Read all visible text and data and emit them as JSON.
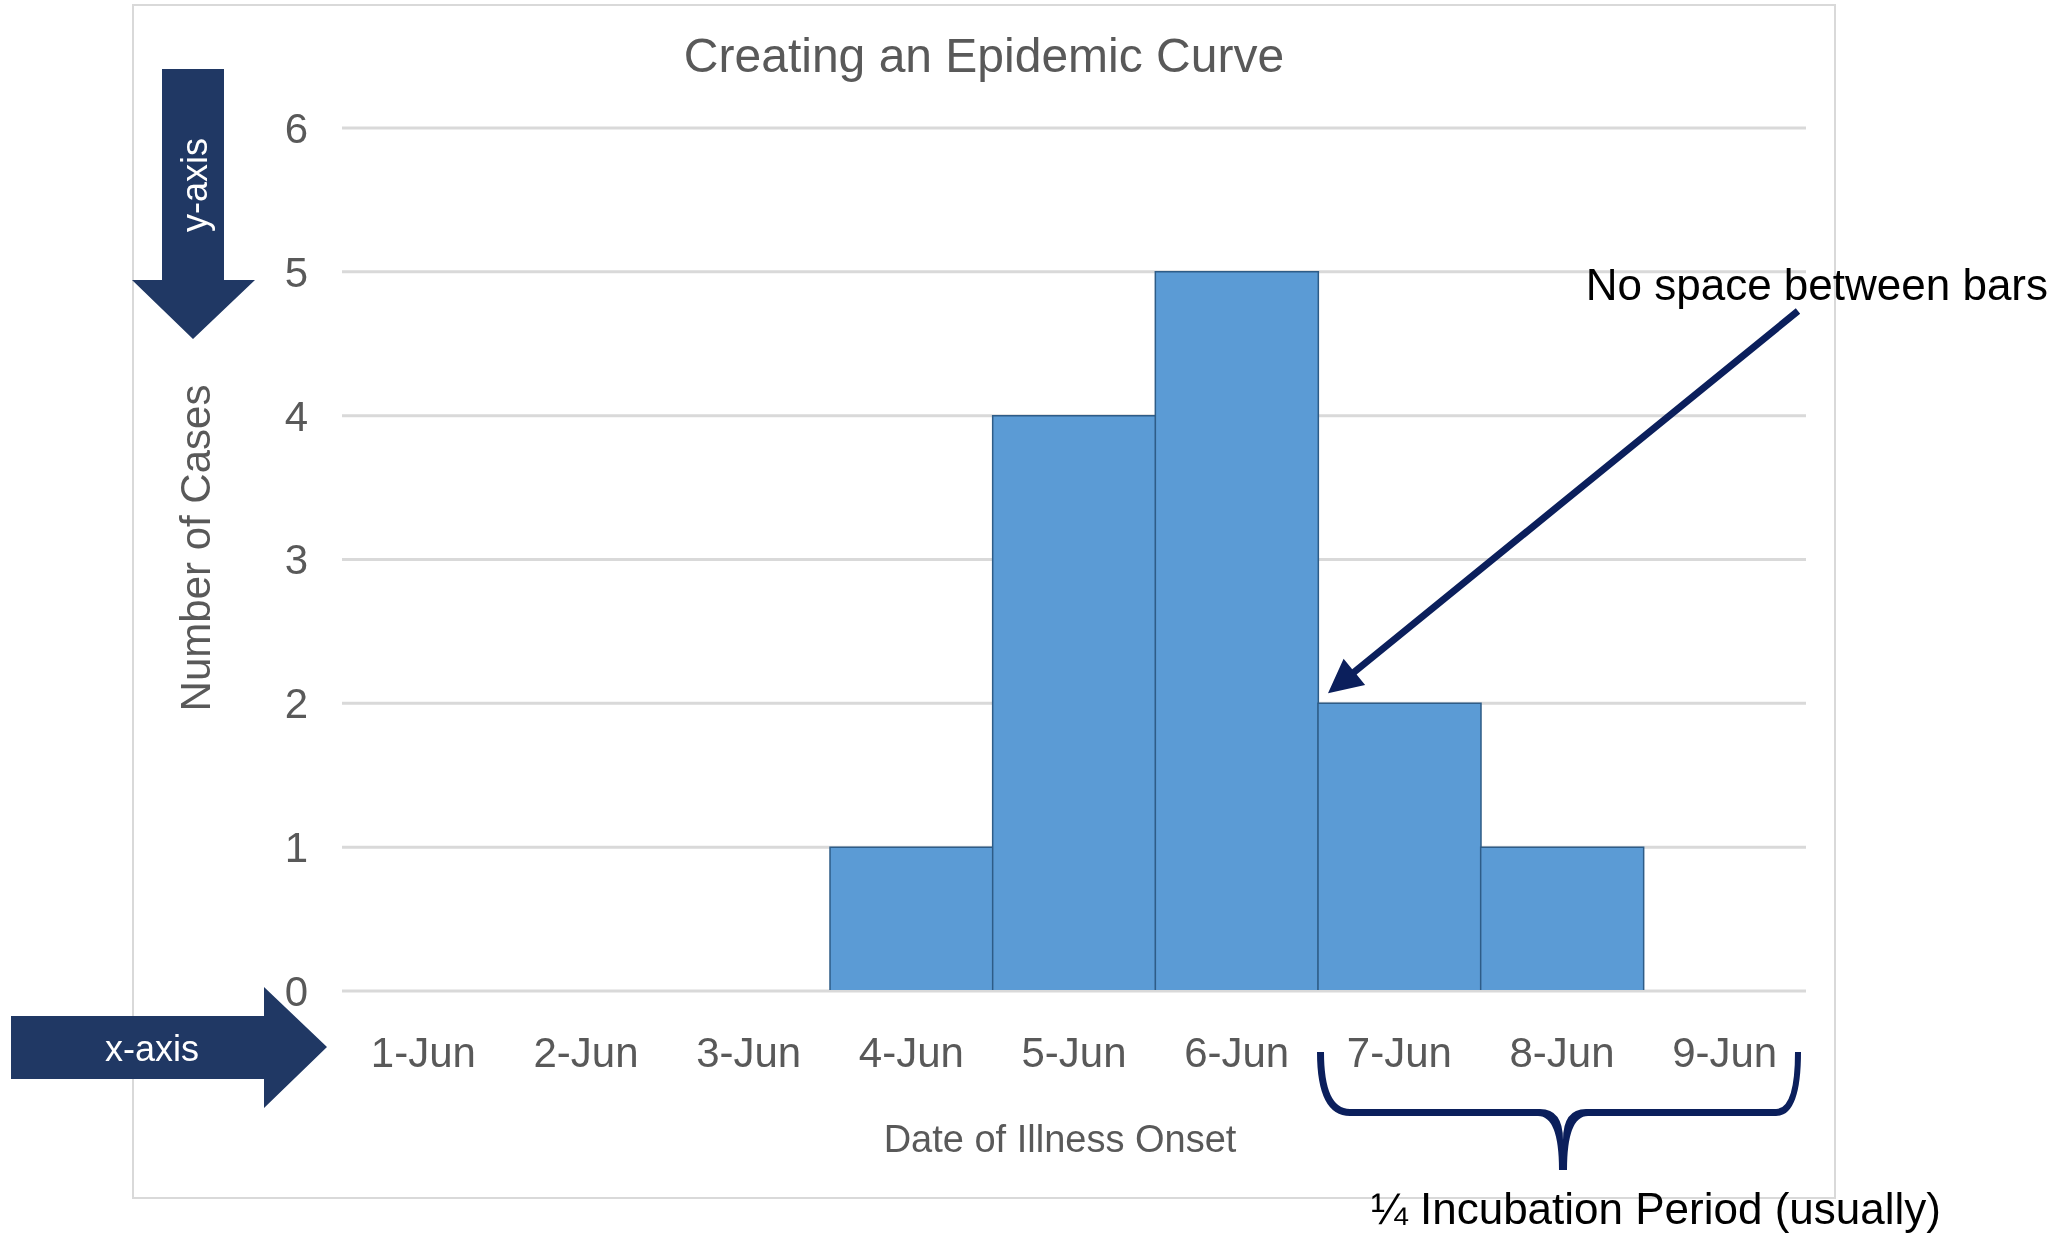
{
  "chart_data": {
    "type": "bar",
    "title": "Creating an Epidemic Curve",
    "xlabel": "Date of Illness Onset",
    "ylabel": "Number of Cases",
    "categories": [
      "1-Jun",
      "2-Jun",
      "3-Jun",
      "4-Jun",
      "5-Jun",
      "6-Jun",
      "7-Jun",
      "8-Jun",
      "9-Jun"
    ],
    "values": [
      0,
      0,
      0,
      1,
      4,
      5,
      2,
      1,
      0
    ],
    "color": "#5b9bd5",
    "ylim": [
      0,
      6
    ],
    "yticks": [
      0,
      1,
      2,
      3,
      4,
      5,
      6
    ],
    "grid": "y",
    "legend": false,
    "annotations": [
      "No space between bars",
      "¼ Incubation Period (usually)",
      "y-axis",
      "x-axis"
    ]
  }
}
